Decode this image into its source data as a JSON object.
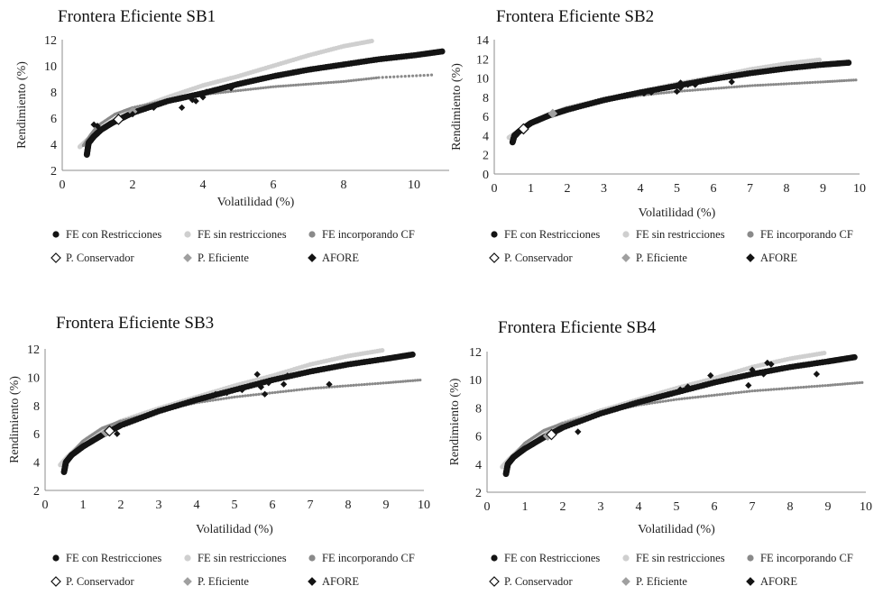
{
  "legend_labels": {
    "fe_restricciones": "FE con Restricciones",
    "fe_sin": "FE sin restricciones",
    "fe_cf": "FE incorporando CF",
    "p_conservador": "P. Conservador",
    "p_eficiente": "P. Eficiente",
    "afore": "AFORE"
  },
  "colors": {
    "fe_restricciones": "#141414",
    "fe_sin": "#cfcfcf",
    "fe_cf": "#8a8a8a",
    "p_conservador": "#ffffff",
    "p_eficiente": "#a0a0a0",
    "afore": "#141414"
  },
  "chart_data": [
    {
      "type": "scatter",
      "title": "Frontera Eficiente SB1",
      "xlabel": "Volatilidad (%)",
      "ylabel": "Rendimiento (%)",
      "xlim": [
        0,
        11
      ],
      "ylim": [
        2,
        12
      ],
      "xticks": [
        0,
        2,
        4,
        6,
        8,
        10
      ],
      "yticks": [
        2,
        4,
        6,
        8,
        10,
        12
      ],
      "series": [
        {
          "name": "FE con Restricciones",
          "x": [
            0.7,
            0.75,
            0.9,
            1.1,
            1.4,
            2.0,
            3.0,
            4.0,
            5.0,
            6.0,
            7.0,
            8.0,
            9.0,
            10.0,
            10.8
          ],
          "y": [
            3.2,
            4.1,
            4.6,
            5.1,
            5.6,
            6.4,
            7.3,
            7.9,
            8.6,
            9.2,
            9.7,
            10.1,
            10.5,
            10.8,
            11.1
          ]
        },
        {
          "name": "FE sin restricciones",
          "x": [
            0.5,
            0.7,
            1.0,
            1.5,
            2.0,
            3.0,
            4.0,
            5.0,
            6.0,
            7.0,
            8.0,
            8.8
          ],
          "y": [
            3.8,
            4.3,
            5.0,
            5.9,
            6.6,
            7.6,
            8.5,
            9.2,
            10.0,
            10.8,
            11.5,
            11.9
          ]
        },
        {
          "name": "FE incorporando CF",
          "x": [
            0.6,
            0.8,
            1.0,
            1.5,
            2.0,
            3.0,
            4.0,
            5.0,
            6.0,
            7.0,
            8.0,
            9.0,
            10.5
          ],
          "y": [
            3.9,
            4.7,
            5.4,
            6.3,
            6.8,
            7.4,
            7.8,
            8.1,
            8.4,
            8.6,
            8.8,
            9.1,
            9.3
          ]
        },
        {
          "name": "P. Conservador",
          "x": [
            1.6
          ],
          "y": [
            5.9
          ]
        },
        {
          "name": "P. Eficiente",
          "x": [
            2.0
          ],
          "y": [
            6.5
          ]
        },
        {
          "name": "AFORE",
          "x": [
            0.9,
            1.0,
            2.0,
            2.6,
            3.4,
            3.7,
            3.8,
            4.0,
            4.1,
            4.8
          ],
          "y": [
            5.5,
            5.4,
            6.3,
            6.8,
            6.8,
            7.4,
            7.3,
            7.6,
            8.0,
            8.3
          ]
        }
      ]
    },
    {
      "type": "scatter",
      "title": "Frontera Eficiente SB2",
      "xlabel": "Volatilidad (%)",
      "ylabel": "Rendimiento (%)",
      "xlim": [
        0,
        10
      ],
      "ylim": [
        0,
        14
      ],
      "xticks": [
        0,
        1,
        2,
        3,
        4,
        5,
        6,
        7,
        8,
        9,
        10
      ],
      "yticks": [
        0,
        2,
        4,
        6,
        8,
        10,
        12,
        14
      ],
      "series": [
        {
          "name": "FE con Restricciones",
          "x": [
            0.5,
            0.55,
            0.7,
            1.0,
            1.5,
            2.0,
            3.0,
            4.0,
            5.0,
            6.0,
            7.0,
            8.0,
            9.0,
            9.7
          ],
          "y": [
            3.3,
            4.0,
            4.5,
            5.3,
            6.1,
            6.7,
            7.7,
            8.5,
            9.2,
            9.9,
            10.5,
            11.0,
            11.4,
            11.6
          ]
        },
        {
          "name": "FE sin restricciones",
          "x": [
            0.4,
            0.6,
            1.0,
            1.5,
            2.0,
            3.0,
            4.0,
            5.0,
            6.0,
            7.0,
            8.0,
            8.9
          ],
          "y": [
            3.8,
            4.3,
            5.3,
            6.2,
            6.9,
            7.8,
            8.6,
            9.4,
            10.1,
            10.9,
            11.5,
            11.9
          ]
        },
        {
          "name": "FE incorporando CF",
          "x": [
            0.5,
            0.7,
            1.0,
            1.5,
            2.0,
            3.0,
            4.0,
            5.0,
            6.0,
            7.0,
            8.0,
            9.0,
            9.9
          ],
          "y": [
            3.9,
            4.6,
            5.5,
            6.3,
            6.9,
            7.6,
            8.2,
            8.6,
            8.9,
            9.2,
            9.4,
            9.6,
            9.8
          ]
        },
        {
          "name": "P. Conservador",
          "x": [
            0.8
          ],
          "y": [
            4.7
          ]
        },
        {
          "name": "P. Eficiente",
          "x": [
            1.6
          ],
          "y": [
            6.3
          ]
        },
        {
          "name": "AFORE",
          "x": [
            0.6,
            4.1,
            4.3,
            5.0,
            5.1,
            5.1,
            5.3,
            5.5,
            6.5
          ],
          "y": [
            4.0,
            8.4,
            8.5,
            8.6,
            9.0,
            9.5,
            9.3,
            9.3,
            9.6
          ]
        }
      ]
    },
    {
      "type": "scatter",
      "title": "Frontera Eficiente SB3",
      "xlabel": "Volatilidad (%)",
      "ylabel": "Rendimiento (%)",
      "xlim": [
        0,
        10
      ],
      "ylim": [
        2,
        12
      ],
      "xticks": [
        0,
        1,
        2,
        3,
        4,
        5,
        6,
        7,
        8,
        9,
        10
      ],
      "yticks": [
        2,
        4,
        6,
        8,
        10,
        12
      ],
      "series": [
        {
          "name": "FE con Restricciones",
          "x": [
            0.5,
            0.55,
            0.7,
            1.0,
            1.5,
            2.0,
            3.0,
            4.0,
            5.0,
            6.0,
            7.0,
            8.0,
            9.0,
            9.7
          ],
          "y": [
            3.3,
            4.0,
            4.5,
            5.1,
            5.9,
            6.6,
            7.6,
            8.4,
            9.1,
            9.8,
            10.4,
            10.9,
            11.3,
            11.6
          ]
        },
        {
          "name": "FE sin restricciones",
          "x": [
            0.4,
            0.6,
            1.0,
            1.5,
            2.0,
            3.0,
            4.0,
            5.0,
            6.0,
            7.0,
            8.0,
            8.9
          ],
          "y": [
            3.8,
            4.4,
            5.4,
            6.2,
            6.9,
            7.8,
            8.6,
            9.4,
            10.1,
            10.9,
            11.5,
            11.9
          ]
        },
        {
          "name": "FE incorporando CF",
          "x": [
            0.5,
            0.7,
            1.0,
            1.5,
            2.0,
            3.0,
            4.0,
            5.0,
            6.0,
            7.0,
            8.0,
            9.0,
            9.9
          ],
          "y": [
            3.9,
            4.6,
            5.5,
            6.4,
            6.9,
            7.6,
            8.2,
            8.6,
            8.9,
            9.2,
            9.4,
            9.6,
            9.8
          ]
        },
        {
          "name": "P. Conservador",
          "x": [
            1.7
          ],
          "y": [
            6.2
          ]
        },
        {
          "name": "P. Eficiente",
          "x": [
            1.6
          ],
          "y": [
            6.1
          ]
        },
        {
          "name": "AFORE",
          "x": [
            1.9,
            4.5,
            4.8,
            5.2,
            5.6,
            5.7,
            5.8,
            5.9,
            6.3,
            6.4,
            7.5
          ],
          "y": [
            6.0,
            8.8,
            8.9,
            9.1,
            10.2,
            9.3,
            8.8,
            9.6,
            9.5,
            10.1,
            9.5
          ]
        }
      ]
    },
    {
      "type": "scatter",
      "title": "Frontera Eficiente SB4",
      "xlabel": "Volatilidad (%)",
      "ylabel": "Rendimiento (%)",
      "xlim": [
        0,
        10
      ],
      "ylim": [
        2,
        12
      ],
      "xticks": [
        0,
        1,
        2,
        3,
        4,
        5,
        6,
        7,
        8,
        9,
        10
      ],
      "yticks": [
        2,
        4,
        6,
        8,
        10,
        12
      ],
      "series": [
        {
          "name": "FE con Restricciones",
          "x": [
            0.5,
            0.55,
            0.7,
            1.0,
            1.5,
            2.0,
            3.0,
            4.0,
            5.0,
            6.0,
            7.0,
            8.0,
            9.0,
            9.7
          ],
          "y": [
            3.3,
            4.0,
            4.5,
            5.1,
            5.9,
            6.6,
            7.6,
            8.4,
            9.1,
            9.8,
            10.4,
            10.9,
            11.3,
            11.6
          ]
        },
        {
          "name": "FE sin restricciones",
          "x": [
            0.4,
            0.6,
            1.0,
            1.5,
            2.0,
            3.0,
            4.0,
            5.0,
            6.0,
            7.0,
            8.0,
            8.9
          ],
          "y": [
            3.8,
            4.4,
            5.4,
            6.2,
            6.9,
            7.8,
            8.6,
            9.4,
            10.1,
            10.9,
            11.5,
            11.9
          ]
        },
        {
          "name": "FE incorporando CF",
          "x": [
            0.5,
            0.7,
            1.0,
            1.5,
            2.0,
            3.0,
            4.0,
            5.0,
            6.0,
            7.0,
            8.0,
            9.0,
            9.9
          ],
          "y": [
            3.9,
            4.6,
            5.5,
            6.4,
            6.9,
            7.6,
            8.2,
            8.6,
            8.9,
            9.2,
            9.4,
            9.6,
            9.8
          ]
        },
        {
          "name": "P. Conservador",
          "x": [
            1.7
          ],
          "y": [
            6.1
          ]
        },
        {
          "name": "P. Eficiente",
          "x": [
            1.6
          ],
          "y": [
            6.0
          ]
        },
        {
          "name": "AFORE",
          "x": [
            2.4,
            5.1,
            5.3,
            5.9,
            6.5,
            6.9,
            7.0,
            7.3,
            7.4,
            7.5,
            8.7
          ],
          "y": [
            6.3,
            9.3,
            9.5,
            10.3,
            10.1,
            9.6,
            10.7,
            10.4,
            11.2,
            11.1,
            10.4
          ]
        }
      ]
    }
  ]
}
